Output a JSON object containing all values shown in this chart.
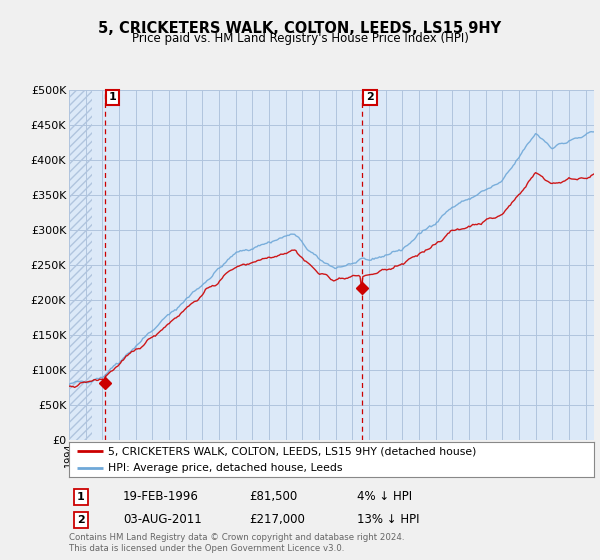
{
  "title": "5, CRICKETERS WALK, COLTON, LEEDS, LS15 9HY",
  "subtitle": "Price paid vs. HM Land Registry's House Price Index (HPI)",
  "red_label": "5, CRICKETERS WALK, COLTON, LEEDS, LS15 9HY (detached house)",
  "blue_label": "HPI: Average price, detached house, Leeds",
  "annotation1_date": "19-FEB-1996",
  "annotation1_price": "£81,500",
  "annotation1_hpi": "4% ↓ HPI",
  "annotation2_date": "03-AUG-2011",
  "annotation2_price": "£217,000",
  "annotation2_hpi": "13% ↓ HPI",
  "copyright": "Contains HM Land Registry data © Crown copyright and database right 2024.\nThis data is licensed under the Open Government Licence v3.0.",
  "ylim": [
    0,
    500000
  ],
  "yticks": [
    0,
    50000,
    100000,
    150000,
    200000,
    250000,
    300000,
    350000,
    400000,
    450000,
    500000
  ],
  "xlim_start": 1994.0,
  "xlim_end": 2025.5,
  "sale1_x": 1996.13,
  "sale1_y": 81500,
  "sale2_x": 2011.58,
  "sale2_y": 217000,
  "bg_color": "#f0f0f0",
  "plot_bg_color": "#dce9f8",
  "hatch_bg_color": "#c8d8ec",
  "red_color": "#cc0000",
  "blue_color": "#6fa8d8",
  "grid_color": "#b0c4de",
  "annotation_box_color": "#cc0000",
  "hatch_color": "#b0c4de"
}
